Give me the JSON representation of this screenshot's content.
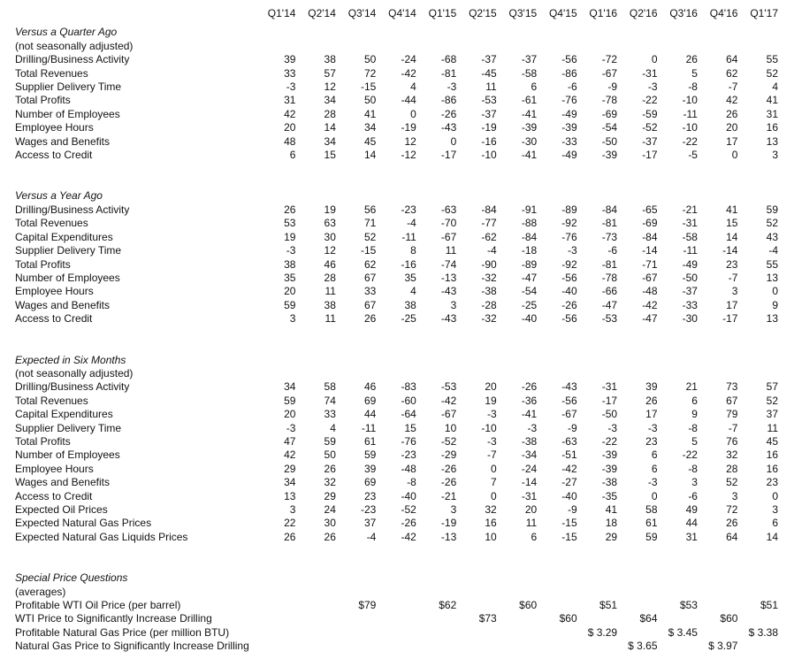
{
  "table": {
    "columns": [
      "Q1'14",
      "Q2'14",
      "Q3'14",
      "Q4'14",
      "Q1'15",
      "Q2'15",
      "Q3'15",
      "Q4'15",
      "Q1'16",
      "Q2'16",
      "Q3'16",
      "Q4'16",
      "Q1'17"
    ],
    "sections": [
      {
        "title": "Versus a Quarter Ago",
        "subtitle": "(not seasonally adjusted)",
        "rows": [
          {
            "label": "Drilling/Business Activity",
            "values": [
              39,
              38,
              50,
              -24,
              -68,
              -37,
              -37,
              -56,
              -72,
              0,
              26,
              64,
              55
            ]
          },
          {
            "label": "Total Revenues",
            "values": [
              33,
              57,
              72,
              -42,
              -81,
              -45,
              -58,
              -86,
              -67,
              -31,
              5,
              62,
              52
            ]
          },
          {
            "label": "Supplier Delivery Time",
            "values": [
              -3,
              12,
              -15,
              4,
              -3,
              11,
              6,
              -6,
              -9,
              -3,
              -8,
              -7,
              4
            ]
          },
          {
            "label": "Total Profits",
            "values": [
              31,
              34,
              50,
              -44,
              -86,
              -53,
              -61,
              -76,
              -78,
              -22,
              -10,
              42,
              41
            ]
          },
          {
            "label": "Number of Employees",
            "values": [
              42,
              28,
              41,
              0,
              -26,
              -37,
              -41,
              -49,
              -69,
              -59,
              -11,
              26,
              31
            ]
          },
          {
            "label": "Employee Hours",
            "values": [
              20,
              14,
              34,
              -19,
              -43,
              -19,
              -39,
              -39,
              -54,
              -52,
              -10,
              20,
              16
            ]
          },
          {
            "label": "Wages and Benefits",
            "values": [
              48,
              34,
              45,
              12,
              0,
              -16,
              -30,
              -33,
              -50,
              -37,
              -22,
              17,
              13
            ]
          },
          {
            "label": "Access to Credit",
            "values": [
              6,
              15,
              14,
              -12,
              -17,
              -10,
              -41,
              -49,
              -39,
              -17,
              -5,
              0,
              3
            ]
          }
        ]
      },
      {
        "title": "Versus a Year Ago",
        "subtitle": null,
        "rows": [
          {
            "label": "Drilling/Business Activity",
            "values": [
              26,
              19,
              56,
              -23,
              -63,
              -84,
              -91,
              -89,
              -84,
              -65,
              -21,
              41,
              59
            ]
          },
          {
            "label": "Total Revenues",
            "values": [
              53,
              63,
              71,
              -4,
              -70,
              -77,
              -88,
              -92,
              -81,
              -69,
              -31,
              15,
              52
            ]
          },
          {
            "label": "Capital Expenditures",
            "values": [
              19,
              30,
              52,
              -11,
              -67,
              -62,
              -84,
              -76,
              -73,
              -84,
              -58,
              14,
              43
            ]
          },
          {
            "label": "Supplier Delivery Time",
            "values": [
              -3,
              12,
              -15,
              8,
              11,
              -4,
              -18,
              -3,
              -6,
              -14,
              -11,
              -14,
              -4
            ]
          },
          {
            "label": "Total Profits",
            "values": [
              38,
              46,
              62,
              -16,
              -74,
              -90,
              -89,
              -92,
              -81,
              -71,
              -49,
              23,
              55
            ]
          },
          {
            "label": "Number of Employees",
            "values": [
              35,
              28,
              67,
              35,
              -13,
              -32,
              -47,
              -56,
              -78,
              -67,
              -50,
              -7,
              13
            ]
          },
          {
            "label": "Employee Hours",
            "values": [
              20,
              11,
              33,
              4,
              -43,
              -38,
              -54,
              -40,
              -66,
              -48,
              -37,
              3,
              0
            ]
          },
          {
            "label": "Wages and Benefits",
            "values": [
              59,
              38,
              67,
              38,
              3,
              -28,
              -25,
              -26,
              -47,
              -42,
              -33,
              17,
              9
            ]
          },
          {
            "label": "Access to Credit",
            "values": [
              3,
              11,
              26,
              -25,
              -43,
              -32,
              -40,
              -56,
              -53,
              -47,
              -30,
              -17,
              13
            ]
          }
        ]
      },
      {
        "title": "Expected in Six Months",
        "subtitle": "(not seasonally adjusted)",
        "rows": [
          {
            "label": "Drilling/Business Activity",
            "values": [
              34,
              58,
              46,
              -83,
              -53,
              20,
              -26,
              -43,
              -31,
              39,
              21,
              73,
              57
            ]
          },
          {
            "label": "Total Revenues",
            "values": [
              59,
              74,
              69,
              -60,
              -42,
              19,
              -36,
              -56,
              -17,
              26,
              6,
              67,
              52
            ]
          },
          {
            "label": "Capital Expenditures",
            "values": [
              20,
              33,
              44,
              -64,
              -67,
              -3,
              -41,
              -67,
              -50,
              17,
              9,
              79,
              37
            ]
          },
          {
            "label": "Supplier Delivery Time",
            "values": [
              -3,
              4,
              -11,
              15,
              10,
              -10,
              -3,
              -9,
              -3,
              -3,
              -8,
              -7,
              11
            ]
          },
          {
            "label": "Total Profits",
            "values": [
              47,
              59,
              61,
              -76,
              -52,
              -3,
              -38,
              -63,
              -22,
              23,
              5,
              76,
              45
            ]
          },
          {
            "label": "Number of Employees",
            "values": [
              42,
              50,
              59,
              -23,
              -29,
              -7,
              -34,
              -51,
              -39,
              6,
              -22,
              32,
              16
            ]
          },
          {
            "label": "Employee Hours",
            "values": [
              29,
              26,
              39,
              -48,
              -26,
              0,
              -24,
              -42,
              -39,
              6,
              -8,
              28,
              16
            ]
          },
          {
            "label": "Wages and Benefits",
            "values": [
              34,
              32,
              69,
              -8,
              -26,
              7,
              -14,
              -27,
              -38,
              -3,
              3,
              52,
              23
            ]
          },
          {
            "label": "Access to Credit",
            "values": [
              13,
              29,
              23,
              -40,
              -21,
              0,
              -31,
              -40,
              -35,
              0,
              -6,
              3,
              0
            ]
          },
          {
            "label": "Expected Oil Prices",
            "values": [
              3,
              24,
              -23,
              -52,
              3,
              32,
              20,
              -9,
              41,
              58,
              49,
              72,
              3
            ]
          },
          {
            "label": "Expected Natural Gas Prices",
            "values": [
              22,
              30,
              37,
              -26,
              -19,
              16,
              11,
              -15,
              18,
              61,
              44,
              26,
              6
            ]
          },
          {
            "label": "Expected Natural Gas Liquids Prices",
            "values": [
              26,
              26,
              -4,
              -42,
              -13,
              10,
              6,
              -15,
              29,
              59,
              31,
              64,
              14
            ]
          }
        ]
      },
      {
        "title": "Special Price Questions",
        "subtitle": "(averages)",
        "rows": [
          {
            "label": "Profitable WTI Oil Price (per barrel)",
            "values": [
              "",
              "",
              "$79",
              "",
              "$62",
              "",
              "$60",
              "",
              "$51",
              "",
              "$53",
              "",
              "$51"
            ]
          },
          {
            "label": "WTI Price to Significantly Increase Drilling",
            "values": [
              "",
              "",
              "",
              "",
              "",
              "$73",
              "",
              "$60",
              "",
              "$64",
              "",
              "$60",
              ""
            ]
          },
          {
            "label": "Profitable Natural Gas Price (per million BTU)",
            "values": [
              "",
              "",
              "",
              "",
              "",
              "",
              "",
              "",
              "$ 3.29",
              "",
              "$ 3.45",
              "",
              "$ 3.38"
            ]
          },
          {
            "label": "Natural Gas Price to Significantly Increase Drilling",
            "values": [
              "",
              "",
              "",
              "",
              "",
              "",
              "",
              "",
              "",
              "$ 3.65",
              "",
              "$ 3.97",
              ""
            ]
          }
        ]
      }
    ]
  }
}
